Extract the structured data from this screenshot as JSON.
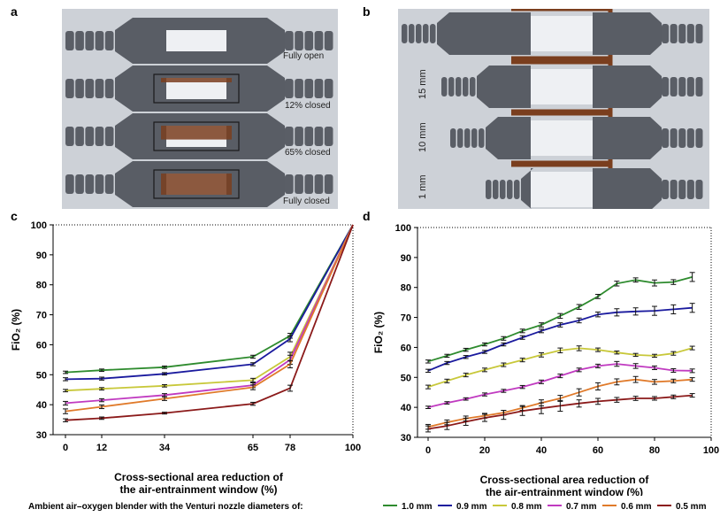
{
  "panels": {
    "a": {
      "letter": "a",
      "labels": [
        "Fully open",
        "12% closed",
        "65% closed",
        "Fully closed"
      ]
    },
    "b": {
      "letter": "b",
      "labels": [
        "15 mm",
        "10 mm",
        "1 mm"
      ]
    },
    "c": {
      "letter": "c"
    },
    "d": {
      "letter": "d"
    }
  },
  "colors": {
    "1.0 mm": "#2e8b2e",
    "0.9 mm": "#1a1a9e",
    "0.8 mm": "#c8c83a",
    "0.7 mm": "#c03ac0",
    "0.6 mm": "#e07a2a",
    "0.5 mm": "#8b1a1a",
    "photo_bg": "#cdd1d7",
    "connector": "#5a5e66",
    "slider": "#7a3e1e"
  },
  "legend": {
    "title": "Ambient air–oxygen blender with the Venturi nozzle diameters of:",
    "items": [
      "1.0 mm",
      "0.9 mm",
      "0.8 mm",
      "0.7 mm",
      "0.6 mm",
      "0.5 mm"
    ]
  },
  "chart_data": [
    {
      "type": "line",
      "panel": "c",
      "xlabel_lines": [
        "Cross-sectional area reduction of",
        "the air-entrainment window (%)"
      ],
      "ylabel": "FiO₂ (%)",
      "x": [
        0,
        12,
        34,
        65,
        78,
        100
      ],
      "xticks": [
        "0",
        "12",
        "34",
        "65",
        "78",
        "100"
      ],
      "yticks": [
        "30",
        "40",
        "50",
        "60",
        "70",
        "80",
        "90",
        "100"
      ],
      "ylim": [
        30,
        100
      ],
      "series": [
        {
          "name": "1.0 mm",
          "values": [
            50.8,
            51.5,
            52.5,
            56,
            63,
            100
          ],
          "err": [
            0.4,
            0.4,
            0.4,
            0.5,
            0.8,
            0
          ]
        },
        {
          "name": "0.9 mm",
          "values": [
            48.5,
            48.7,
            50.3,
            53.5,
            62,
            100
          ],
          "err": [
            0.5,
            0.5,
            0.4,
            0.5,
            1,
            0
          ]
        },
        {
          "name": "0.8 mm",
          "values": [
            44.7,
            45.3,
            46.3,
            48.2,
            56,
            100
          ],
          "err": [
            0.4,
            0.4,
            0.4,
            0.6,
            1.5,
            0
          ]
        },
        {
          "name": "0.7 mm",
          "values": [
            40.5,
            41.5,
            43.2,
            46.5,
            55,
            100
          ],
          "err": [
            0.6,
            0.5,
            0.5,
            0.8,
            1.5,
            0
          ]
        },
        {
          "name": "0.6 mm",
          "values": [
            37.8,
            39.3,
            42,
            45.8,
            53.5,
            100
          ],
          "err": [
            0.8,
            0.6,
            0.6,
            0.8,
            1.2,
            0
          ]
        },
        {
          "name": "0.5 mm",
          "values": [
            34.8,
            35.5,
            37.2,
            40.3,
            45.5,
            100
          ],
          "err": [
            0.5,
            0.4,
            0.3,
            0.5,
            1,
            0
          ]
        }
      ]
    },
    {
      "type": "line",
      "panel": "d",
      "xlabel_lines": [
        "Cross-sectional area reduction of",
        "the air-entrainment window (%)"
      ],
      "ylabel": "FiO₂ (%)",
      "x": [
        0,
        6.67,
        13.33,
        20,
        26.67,
        33.33,
        40,
        46.67,
        53.33,
        60,
        66.67,
        73.33,
        80,
        86.67,
        93.33
      ],
      "xticks": [
        "0",
        "20",
        "40",
        "60",
        "80",
        "100"
      ],
      "yticks": [
        "30",
        "40",
        "50",
        "60",
        "70",
        "80",
        "90",
        "100"
      ],
      "xlim": [
        0,
        100
      ],
      "ylim": [
        30,
        100
      ],
      "series": [
        {
          "name": "1.0 mm",
          "values": [
            55.3,
            57.2,
            59.2,
            61,
            63,
            65.5,
            67.5,
            70.5,
            73.5,
            77,
            81.3,
            82.5,
            81.5,
            81.8,
            83.5
          ],
          "err": [
            0.5,
            0.5,
            0.5,
            0.5,
            0.6,
            0.6,
            0.7,
            0.8,
            0.8,
            0.7,
            0.8,
            0.7,
            1,
            0.8,
            1.5
          ]
        },
        {
          "name": "0.9 mm",
          "values": [
            52.2,
            54.8,
            56.8,
            58.5,
            61,
            63.3,
            65.5,
            67.5,
            69,
            71,
            71.7,
            72,
            72.2,
            72.7,
            73.2
          ],
          "err": [
            0.5,
            0.5,
            0.5,
            0.5,
            0.5,
            0.6,
            0.6,
            0.7,
            0.8,
            0.8,
            1.2,
            1.2,
            1.5,
            1.5,
            1.5
          ]
        },
        {
          "name": "0.8 mm",
          "values": [
            46.8,
            48.8,
            50.8,
            52.5,
            54.2,
            55.8,
            57.5,
            59,
            59.7,
            59.2,
            58.3,
            57.5,
            57.2,
            58,
            59.8
          ],
          "err": [
            0.6,
            0.6,
            0.6,
            0.6,
            0.6,
            0.6,
            0.7,
            0.8,
            0.8,
            0.6,
            0.5,
            0.5,
            0.5,
            0.6,
            0.6
          ]
        },
        {
          "name": "0.7 mm",
          "values": [
            40,
            41.5,
            42.8,
            44.3,
            45.5,
            46.8,
            48.5,
            50.5,
            52.5,
            53.8,
            54.5,
            53.8,
            53.2,
            52.3,
            52.2
          ],
          "err": [
            0.4,
            0.4,
            0.4,
            0.5,
            0.5,
            0.5,
            0.6,
            0.6,
            0.6,
            0.6,
            0.8,
            0.8,
            0.6,
            0.6,
            0.6
          ]
        },
        {
          "name": "0.6 mm",
          "values": [
            33.5,
            35,
            36.3,
            37.2,
            38.2,
            39.8,
            41.5,
            43,
            45,
            47,
            48.5,
            49.3,
            48.5,
            48.8,
            49.3
          ],
          "err": [
            0.8,
            0.8,
            0.8,
            0.8,
            0.8,
            0.8,
            1,
            1,
            1.2,
            1.2,
            1,
            1,
            0.8,
            0.6,
            0.6
          ]
        },
        {
          "name": "0.5 mm",
          "values": [
            32.8,
            33.8,
            35.2,
            36.5,
            37.5,
            38.8,
            39.7,
            40.5,
            41.3,
            42,
            42.5,
            43,
            43,
            43.5,
            44
          ],
          "err": [
            1,
            1.2,
            1.2,
            1.2,
            1.5,
            1.5,
            1.8,
            1.8,
            1.2,
            1,
            0.8,
            0.7,
            0.6,
            0.6,
            0.6
          ]
        }
      ]
    }
  ]
}
